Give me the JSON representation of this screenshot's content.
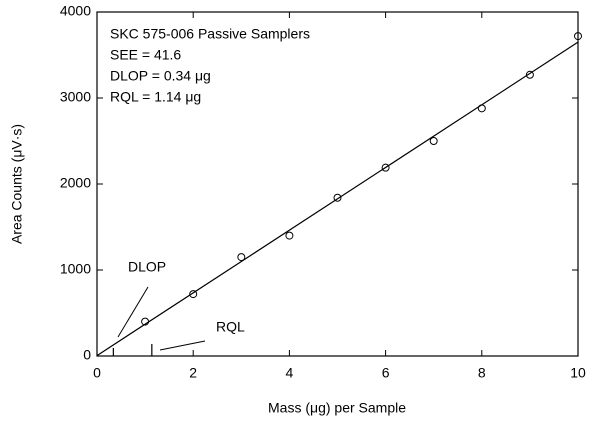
{
  "chart_data": {
    "type": "scatter",
    "annotations": [
      "SKC 575-006 Passive Samplers",
      "SEE = 41.6",
      "DLOP = 0.34 μg",
      "RQL = 1.14 μg"
    ],
    "xlabel": "Mass (μg) per Sample",
    "ylabel": "Area Counts (μV·s)",
    "series": [
      {
        "style": "markers",
        "color": "#000000",
        "x": [
          1,
          2,
          3,
          4,
          5,
          6,
          7,
          8,
          9,
          10
        ],
        "values": [
          400,
          720,
          1150,
          1400,
          1840,
          2190,
          2500,
          2880,
          3270,
          3720
        ]
      },
      {
        "style": "line",
        "color": "#000000",
        "x": [
          0,
          10
        ],
        "values": [
          5,
          3650
        ]
      }
    ],
    "markers": [
      {
        "label": "DLOP",
        "x": 0.34
      },
      {
        "label": "RQL",
        "x": 1.14
      }
    ],
    "xlim": [
      0,
      10
    ],
    "xticks": [
      0,
      2,
      4,
      6,
      8,
      10
    ],
    "ylim": [
      0,
      4000
    ],
    "yticks": [
      0,
      1000,
      2000,
      3000,
      4000
    ],
    "grid": false
  }
}
